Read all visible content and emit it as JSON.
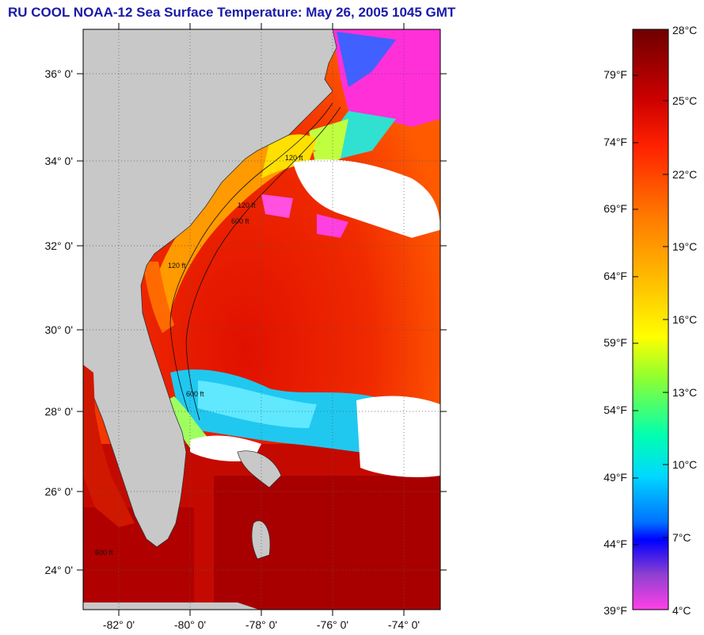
{
  "title": "RU COOL  NOAA-12  Sea Surface Temperature:  May 26, 2005 1045 GMT",
  "map": {
    "lat_labels": [
      "36° 0'",
      "34° 0'",
      "32° 0'",
      "30° 0'",
      "28° 0'",
      "26° 0'",
      "24° 0'"
    ],
    "lon_labels": [
      "-82° 0'",
      "-80° 0'",
      "-78° 0'",
      "-76° 0'",
      "-74° 0'"
    ],
    "land_color": "#c8c8c8",
    "cloud_color": "#ffffff",
    "contour_labels": [
      "120 ft",
      "600 ft",
      "120 ft",
      "600 ft",
      "120 ft",
      "600 ft"
    ]
  },
  "colorbar": {
    "celsius_labels": [
      "28°C",
      "25°C",
      "22°C",
      "19°C",
      "16°C",
      "13°C",
      "10°C",
      "7°C",
      "4°C"
    ],
    "fahrenheit_labels": [
      "79°F",
      "74°F",
      "69°F",
      "64°F",
      "59°F",
      "54°F",
      "49°F",
      "44°F",
      "39°F"
    ],
    "stops": [
      "#7a0000",
      "#cc0000",
      "#ff2a00",
      "#ff7a00",
      "#ffc800",
      "#ffff00",
      "#80ff40",
      "#00ffa0",
      "#00e0ff",
      "#0080ff",
      "#0000ff",
      "#8040c0",
      "#ff40e0"
    ]
  }
}
